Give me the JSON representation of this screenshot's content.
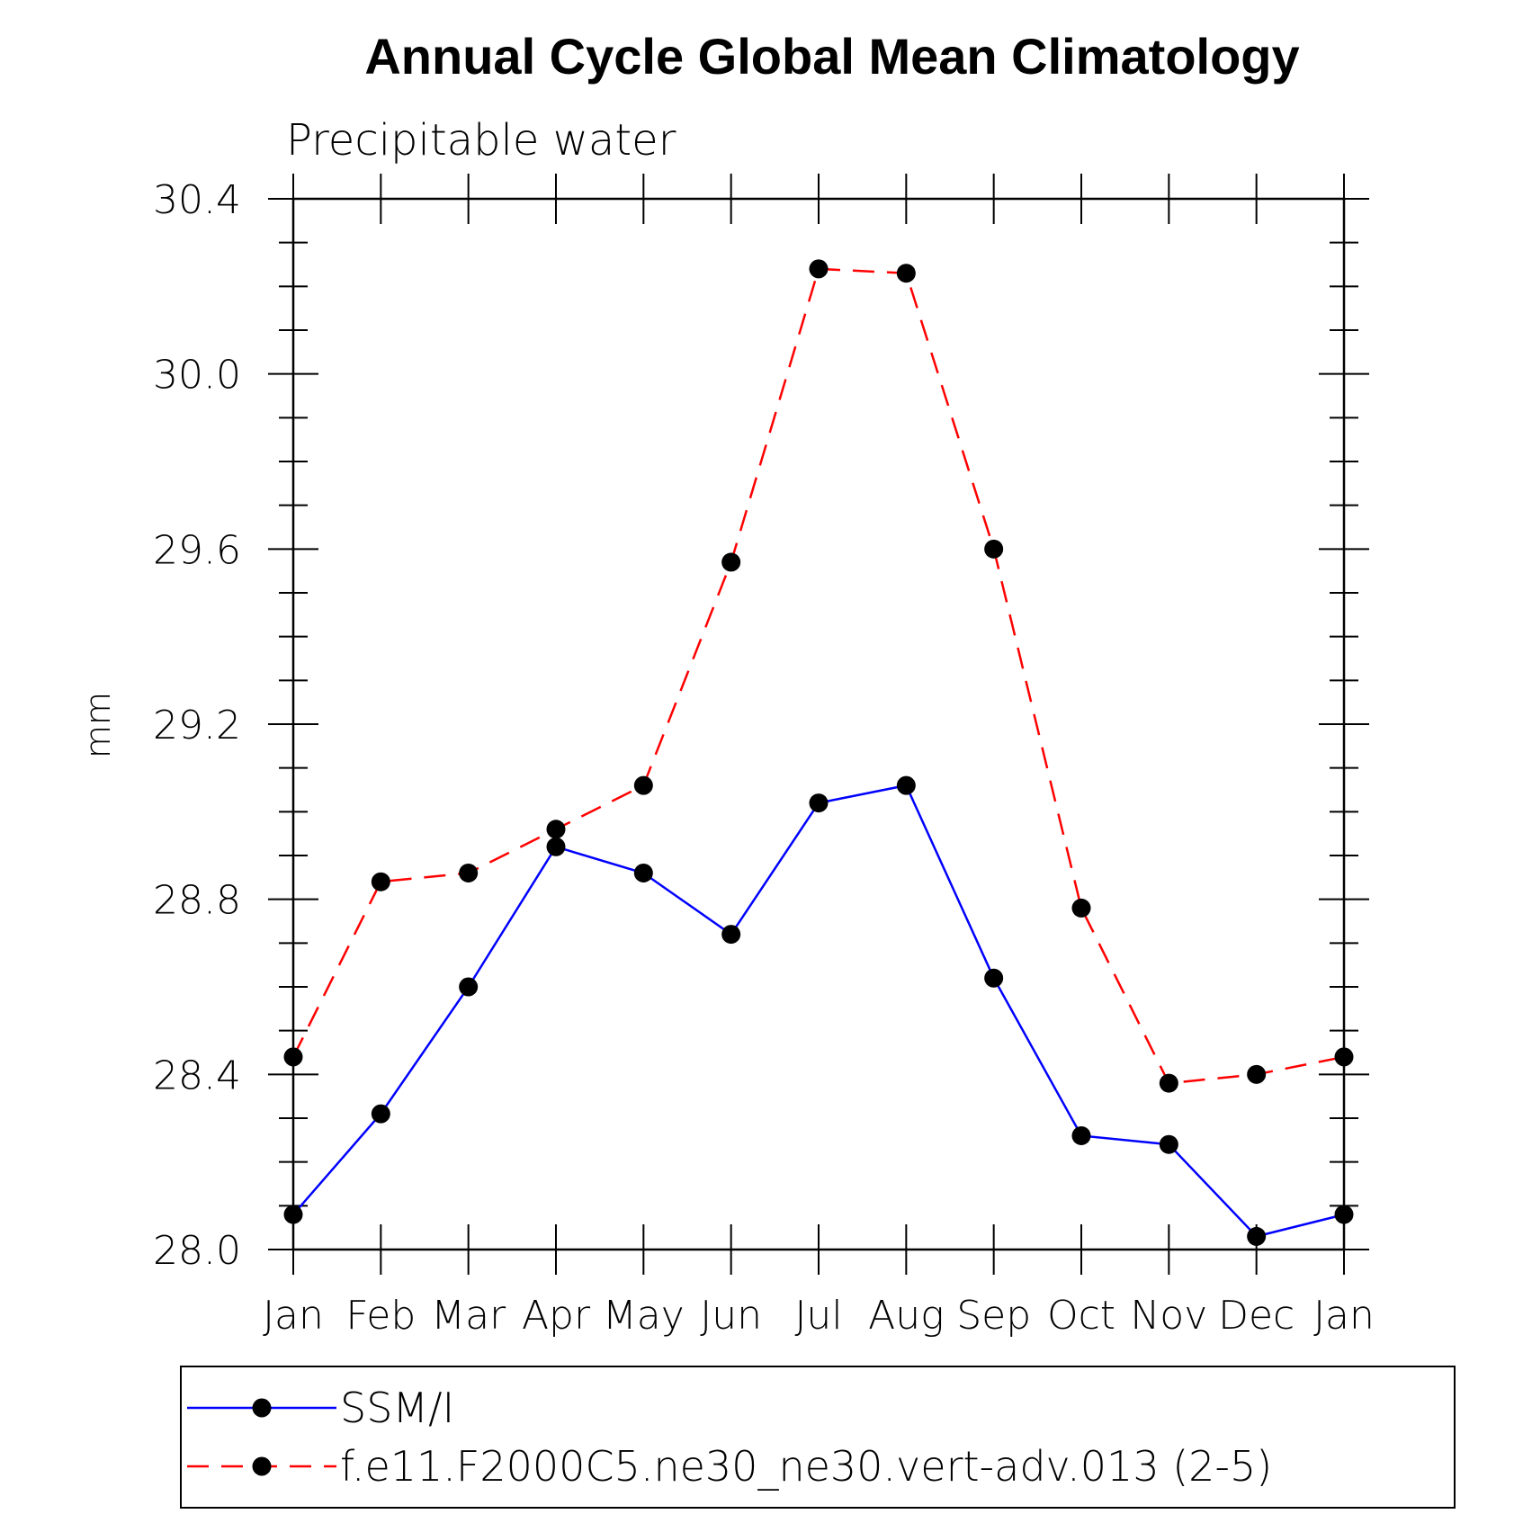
{
  "chart_data": {
    "type": "line",
    "title": "Annual Cycle Global Mean Climatology",
    "subtitle": "Precipitable water",
    "xlabel": "",
    "ylabel": "mm",
    "categories": [
      "Jan",
      "Feb",
      "Mar",
      "Apr",
      "May",
      "Jun",
      "Jul",
      "Aug",
      "Sep",
      "Oct",
      "Nov",
      "Dec",
      "Jan"
    ],
    "ylim": [
      28.0,
      30.4
    ],
    "yticks": [
      "28.0",
      "28.4",
      "28.8",
      "29.2",
      "29.6",
      "30.0",
      "30.4"
    ],
    "grid": false,
    "legend_position": "bottom",
    "series": [
      {
        "name": "SSM/I",
        "color": "#0000ff",
        "dash": "solid",
        "values": [
          28.08,
          28.31,
          28.6,
          28.92,
          28.86,
          28.72,
          29.02,
          29.06,
          28.62,
          28.26,
          28.24,
          28.03,
          28.08
        ]
      },
      {
        "name": "f.e11.F2000C5.ne30_ne30.vert-adv.013 (2-5)",
        "color": "#ff0000",
        "dash": "dashed",
        "values": [
          28.44,
          28.84,
          28.86,
          28.96,
          29.06,
          29.57,
          30.24,
          30.23,
          29.6,
          28.78,
          28.38,
          28.4,
          28.44
        ]
      }
    ]
  }
}
